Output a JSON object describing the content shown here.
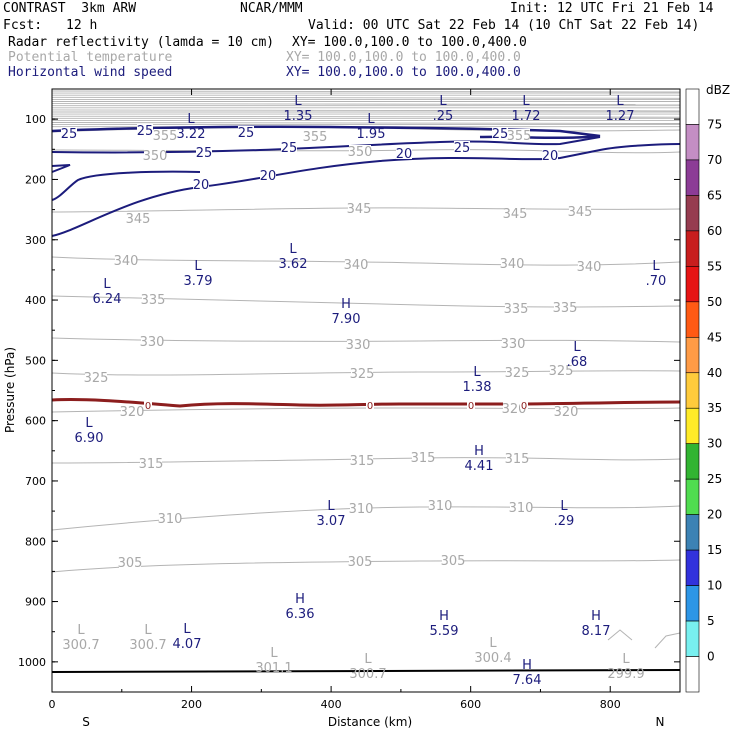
{
  "header": {
    "model": "CONTRAST  3km ARW",
    "center": "NCAR/MMM",
    "init": "Init: 12 UTC Fri 21 Feb 14",
    "fcst_label": "Fcst:",
    "fcst_value": "12 h",
    "valid": "Valid: 00 UTC Sat 22 Feb 14 (10 ChT Sat 22 Feb 14)"
  },
  "fields": [
    {
      "name": "Radar reflectivity (lamda = 10 cm)",
      "xy": "XY= 100.0,100.0 to 100.0,400.0",
      "color": "#000000"
    },
    {
      "name": "Potential temperature",
      "xy": "XY= 100.0,100.0 to 100.0,400.0",
      "color": "#b4b4b4"
    },
    {
      "name": "Horizontal wind speed",
      "xy": "XY= 100.0,100.0 to 100.0,400.0",
      "color": "#1c1c7c"
    }
  ],
  "chart_data": {
    "type": "contour",
    "xlabel": "Distance (km)",
    "ylabel": "Pressure (hPa)",
    "xlim": [
      0,
      900
    ],
    "ylim": [
      1050,
      50
    ],
    "x_ticks": [
      "0",
      "200",
      "400",
      "600",
      "800"
    ],
    "x_tick_values": [
      0,
      200,
      400,
      600,
      800
    ],
    "y_ticks": [
      "100",
      "200",
      "300",
      "400",
      "500",
      "600",
      "700",
      "800",
      "900",
      "1000"
    ],
    "y_tick_values": [
      100,
      200,
      300,
      400,
      500,
      600,
      700,
      800,
      900,
      1000
    ],
    "end_labels": {
      "left": "S",
      "right": "N"
    },
    "colorbar": {
      "title": "dBZ",
      "levels": [
        "75",
        "70",
        "65",
        "60",
        "55",
        "50",
        "45",
        "40",
        "35",
        "30",
        "25",
        "20",
        "15",
        "10",
        "5",
        "0"
      ],
      "colors": [
        "#ffffff",
        "#c48ec4",
        "#8c3c96",
        "#963c50",
        "#c81e1e",
        "#e61414",
        "#ff5a14",
        "#ff9b46",
        "#ffcb3c",
        "#ffeb28",
        "#32b432",
        "#50dc50",
        "#3c82b4",
        "#3232dc",
        "#2d96e6",
        "#78f0f0",
        "#ffffff"
      ]
    },
    "theta_levels": [
      {
        "value": 355,
        "y": 132
      },
      {
        "value": 350,
        "y": 160
      },
      {
        "value": 345,
        "y": 220
      },
      {
        "value": 340,
        "y": 262
      },
      {
        "value": 335,
        "y": 302
      },
      {
        "value": 330,
        "y": 342
      },
      {
        "value": 325,
        "y": 378
      },
      {
        "value": 320,
        "y": 413
      },
      {
        "value": 315,
        "y": 463
      },
      {
        "value": 310,
        "y": 512
      },
      {
        "value": 305,
        "y": 560
      }
    ],
    "theta_labels": [
      {
        "text": "355",
        "x": 165,
        "y": 137
      },
      {
        "text": "355",
        "x": 315,
        "y": 138
      },
      {
        "text": "355",
        "x": 519,
        "y": 137
      },
      {
        "text": "350",
        "x": 155,
        "y": 157
      },
      {
        "text": "350",
        "x": 360,
        "y": 153
      },
      {
        "text": "345",
        "x": 138,
        "y": 220
      },
      {
        "text": "345",
        "x": 359,
        "y": 210
      },
      {
        "text": "345",
        "x": 515,
        "y": 215
      },
      {
        "text": "345",
        "x": 580,
        "y": 213
      },
      {
        "text": "340",
        "x": 126,
        "y": 262
      },
      {
        "text": "340",
        "x": 356,
        "y": 266
      },
      {
        "text": "340",
        "x": 512,
        "y": 265
      },
      {
        "text": "340",
        "x": 589,
        "y": 268
      },
      {
        "text": "335",
        "x": 153,
        "y": 301
      },
      {
        "text": "335",
        "x": 516,
        "y": 310
      },
      {
        "text": "335",
        "x": 565,
        "y": 309
      },
      {
        "text": "330",
        "x": 152,
        "y": 343
      },
      {
        "text": "330",
        "x": 358,
        "y": 346
      },
      {
        "text": "330",
        "x": 513,
        "y": 345
      },
      {
        "text": "325",
        "x": 96,
        "y": 379
      },
      {
        "text": "325",
        "x": 362,
        "y": 375
      },
      {
        "text": "325",
        "x": 517,
        "y": 374
      },
      {
        "text": "325",
        "x": 561,
        "y": 372
      },
      {
        "text": "320",
        "x": 132,
        "y": 413
      },
      {
        "text": "320",
        "x": 514,
        "y": 410
      },
      {
        "text": "320",
        "x": 566,
        "y": 413
      },
      {
        "text": "315",
        "x": 151,
        "y": 465
      },
      {
        "text": "315",
        "x": 362,
        "y": 462
      },
      {
        "text": "315",
        "x": 423,
        "y": 459
      },
      {
        "text": "315",
        "x": 517,
        "y": 460
      },
      {
        "text": "310",
        "x": 170,
        "y": 520
      },
      {
        "text": "310",
        "x": 361,
        "y": 510
      },
      {
        "text": "310",
        "x": 440,
        "y": 507
      },
      {
        "text": "310",
        "x": 521,
        "y": 509
      },
      {
        "text": "305",
        "x": 130,
        "y": 564
      },
      {
        "text": "305",
        "x": 360,
        "y": 563
      },
      {
        "text": "305",
        "x": 453,
        "y": 562
      }
    ],
    "wind_labels": [
      {
        "text": "25",
        "x": 69,
        "y": 135
      },
      {
        "text": "25",
        "x": 145,
        "y": 132
      },
      {
        "text": "25",
        "x": 246,
        "y": 134
      },
      {
        "text": "25",
        "x": 500,
        "y": 135
      },
      {
        "text": "25",
        "x": 204,
        "y": 154
      },
      {
        "text": "25",
        "x": 289,
        "y": 149
      },
      {
        "text": "25",
        "x": 462,
        "y": 149
      },
      {
        "text": "20",
        "x": 404,
        "y": 155
      },
      {
        "text": "20",
        "x": 550,
        "y": 157
      },
      {
        "text": "20",
        "x": 201,
        "y": 186
      },
      {
        "text": "20",
        "x": 268,
        "y": 177
      }
    ],
    "freezing_labels": [
      {
        "text": "0",
        "x": 148,
        "y": 406
      },
      {
        "text": "0",
        "x": 370,
        "y": 406
      },
      {
        "text": "0",
        "x": 471,
        "y": 406
      },
      {
        "text": "0",
        "x": 524,
        "y": 406
      }
    ],
    "extrema": [
      {
        "type": "L",
        "value": "1.35",
        "x": 298,
        "y": 105,
        "color": "navy"
      },
      {
        "type": "L",
        "value": ".25",
        "x": 443,
        "y": 105,
        "color": "navy"
      },
      {
        "type": "L",
        "value": "1.72",
        "x": 526,
        "y": 105,
        "color": "navy"
      },
      {
        "type": "L",
        "value": "1.27",
        "x": 620,
        "y": 105,
        "color": "navy"
      },
      {
        "type": "L",
        "value": "3.22",
        "x": 191,
        "y": 123,
        "color": "navy"
      },
      {
        "type": "L",
        "value": "1.95",
        "x": 371,
        "y": 123,
        "color": "navy"
      },
      {
        "type": "L",
        "value": "3.62",
        "x": 293,
        "y": 253,
        "color": "navy"
      },
      {
        "type": "L",
        "value": "3.79",
        "x": 198,
        "y": 270,
        "color": "navy"
      },
      {
        "type": "L",
        "value": ".70",
        "x": 656,
        "y": 270,
        "color": "navy"
      },
      {
        "type": "L",
        "value": "6.24",
        "x": 107,
        "y": 288,
        "color": "navy"
      },
      {
        "type": "H",
        "value": "7.90",
        "x": 346,
        "y": 308,
        "color": "navy"
      },
      {
        "type": "L",
        "value": ".68",
        "x": 577,
        "y": 351,
        "color": "navy"
      },
      {
        "type": "L",
        "value": "1.38",
        "x": 477,
        "y": 376,
        "color": "navy"
      },
      {
        "type": "L",
        "value": "6.90",
        "x": 89,
        "y": 427,
        "color": "navy"
      },
      {
        "type": "H",
        "value": "4.41",
        "x": 479,
        "y": 455,
        "color": "navy"
      },
      {
        "type": "L",
        "value": "3.07",
        "x": 331,
        "y": 510,
        "color": "navy"
      },
      {
        "type": "L",
        "value": ".29",
        "x": 564,
        "y": 510,
        "color": "navy"
      },
      {
        "type": "H",
        "value": "6.36",
        "x": 300,
        "y": 603,
        "color": "navy"
      },
      {
        "type": "H",
        "value": "5.59",
        "x": 444,
        "y": 620,
        "color": "navy"
      },
      {
        "type": "H",
        "value": "8.17",
        "x": 596,
        "y": 620,
        "color": "navy"
      },
      {
        "type": "L",
        "value": "4.07",
        "x": 187,
        "y": 633,
        "color": "navy"
      },
      {
        "type": "H",
        "value": "7.64",
        "x": 527,
        "y": 669,
        "color": "navy"
      },
      {
        "type": "L",
        "value": "300.7",
        "x": 81,
        "y": 634,
        "color": "gray"
      },
      {
        "type": "L",
        "value": "300.7",
        "x": 148,
        "y": 634,
        "color": "gray"
      },
      {
        "type": "L",
        "value": "300.4",
        "x": 493,
        "y": 647,
        "color": "gray"
      },
      {
        "type": "L",
        "value": "301.1",
        "x": 274,
        "y": 657,
        "color": "gray"
      },
      {
        "type": "L",
        "value": "300.7",
        "x": 368,
        "y": 663,
        "color": "gray"
      },
      {
        "type": "L",
        "value": "299.9",
        "x": 626,
        "y": 663,
        "color": "gray"
      }
    ]
  }
}
